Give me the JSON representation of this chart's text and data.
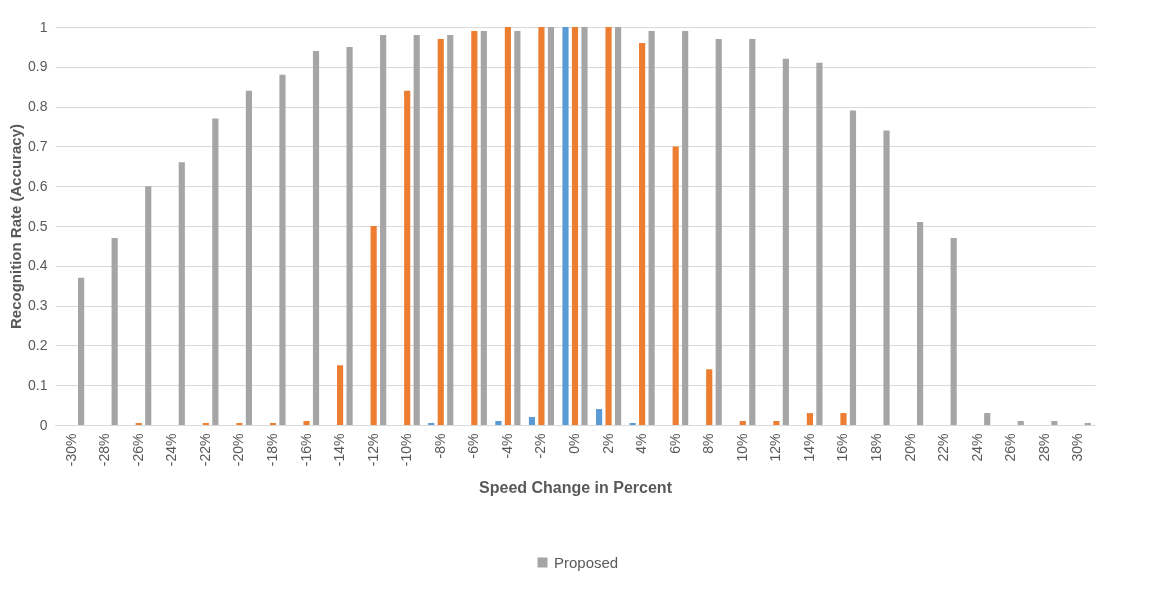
{
  "chart_data": {
    "type": "bar",
    "xlabel": "Speed Change in Percent",
    "ylabel": "Recognition Rate (Accuracy)",
    "categories": [
      "-30%",
      "-28%",
      "-26%",
      "-24%",
      "-22%",
      "-20%",
      "-18%",
      "-16%",
      "-14%",
      "-12%",
      "-10%",
      "-8%",
      "-6%",
      "-4%",
      "-2%",
      "0%",
      "2%",
      "4%",
      "6%",
      "8%",
      "10%",
      "12%",
      "14%",
      "16%",
      "18%",
      "20%",
      "22%",
      "24%",
      "26%",
      "28%",
      "30%"
    ],
    "series": [
      {
        "color": "#5b9bd5",
        "values": [
          0,
          0,
          0,
          0,
          0,
          0,
          0,
          0,
          0,
          0,
          0,
          0.005,
          0,
          0.01,
          0.02,
          1,
          0.04,
          0.005,
          0,
          0,
          0,
          0,
          0,
          0,
          0,
          0,
          0,
          0,
          0,
          0,
          0
        ]
      },
      {
        "color": "#ed7d31",
        "values": [
          0,
          0,
          0.005,
          0,
          0.005,
          0.005,
          0.005,
          0.01,
          0.15,
          0.5,
          0.84,
          0.97,
          0.99,
          1,
          1,
          1,
          1,
          0.96,
          0.7,
          0.14,
          0.01,
          0.01,
          0.03,
          0.03,
          0,
          0,
          0,
          0,
          0,
          0,
          0
        ]
      },
      {
        "name": "Proposed",
        "color": "#a5a5a5",
        "values": [
          0.37,
          0.47,
          0.6,
          0.66,
          0.77,
          0.84,
          0.88,
          0.94,
          0.95,
          0.98,
          0.98,
          0.98,
          0.99,
          0.99,
          1,
          1,
          1,
          0.99,
          0.99,
          0.97,
          0.97,
          0.92,
          0.91,
          0.79,
          0.74,
          0.51,
          0.47,
          0.03,
          0.01,
          0.01,
          0.005
        ]
      }
    ],
    "ylim": [
      0,
      1
    ],
    "yticks": [
      0,
      0.1,
      0.2,
      0.3,
      0.4,
      0.5,
      0.6,
      0.7,
      0.8,
      0.9,
      1
    ],
    "grid": "y",
    "legend": "bottom"
  }
}
